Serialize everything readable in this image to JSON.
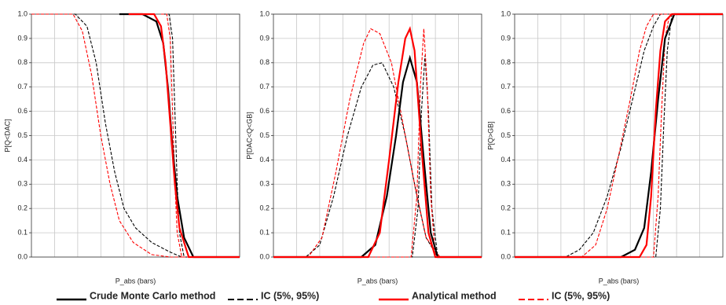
{
  "chart_data": [
    {
      "type": "line",
      "ylabel": "P[Q<DAC]",
      "xlabel": "P_abs (bars)",
      "xlim": [
        0,
        9
      ],
      "ylim": [
        0,
        1
      ],
      "yticks": [
        {
          "value": 0,
          "label": "0.0"
        },
        {
          "value": 0.1,
          "label": "0.1"
        },
        {
          "value": 0.2,
          "label": "0.2"
        },
        {
          "value": 0.3,
          "label": "0.3"
        },
        {
          "value": 0.4,
          "label": "0.4"
        },
        {
          "value": 0.5,
          "label": "0.5"
        },
        {
          "value": 0.6,
          "label": "0.6"
        },
        {
          "value": 0.7,
          "label": "0.7"
        },
        {
          "value": 0.8,
          "label": "0.8"
        },
        {
          "value": 0.9,
          "label": "0.9"
        },
        {
          "value": 1,
          "label": "1.0"
        }
      ],
      "grid": true,
      "series": [
        {
          "color": "#000000",
          "dash": true,
          "x": [
            0,
            1.9,
            2.4,
            2.8,
            3.2,
            3.6,
            4.0,
            4.5,
            5.2,
            6.0,
            6.5,
            9
          ],
          "values": [
            1,
            1,
            0.95,
            0.8,
            0.55,
            0.35,
            0.2,
            0.12,
            0.06,
            0.02,
            0,
            0
          ]
        },
        {
          "color": "#ff0000",
          "dash": true,
          "x": [
            0,
            1.8,
            2.2,
            2.6,
            3.0,
            3.4,
            3.8,
            4.4,
            5.2,
            6.0,
            9
          ],
          "values": [
            1,
            1,
            0.93,
            0.75,
            0.5,
            0.3,
            0.15,
            0.06,
            0.01,
            0,
            0
          ]
        },
        {
          "color": "#000000",
          "dash": true,
          "x": [
            5.7,
            5.95,
            6.1,
            6.2,
            6.3,
            6.4,
            6.6,
            9
          ],
          "values": [
            1,
            1,
            0.9,
            0.6,
            0.3,
            0.1,
            0,
            0
          ]
        },
        {
          "color": "#ff0000",
          "dash": true,
          "x": [
            5.6,
            5.85,
            6.0,
            6.1,
            6.2,
            6.3,
            6.5,
            9
          ],
          "values": [
            1,
            1,
            0.9,
            0.6,
            0.3,
            0.1,
            0,
            0
          ]
        },
        {
          "color": "#000000",
          "dash": false,
          "x": [
            3.8,
            4.8,
            5.4,
            5.7,
            5.9,
            6.1,
            6.3,
            6.6,
            7.0,
            9
          ],
          "values": [
            1,
            1,
            0.97,
            0.88,
            0.7,
            0.45,
            0.25,
            0.08,
            0,
            0
          ]
        },
        {
          "color": "#ff0000",
          "dash": false,
          "x": [
            4.2,
            5.3,
            5.6,
            5.8,
            6.0,
            6.2,
            6.4,
            6.8,
            9
          ],
          "values": [
            1,
            1,
            0.95,
            0.8,
            0.55,
            0.3,
            0.12,
            0,
            0
          ]
        }
      ]
    },
    {
      "type": "line",
      "ylabel": "P[DAC<Q<GB]",
      "xlabel": "P_abs (bars)",
      "xlim": [
        0,
        9
      ],
      "ylim": [
        0,
        1
      ],
      "yticks": [
        {
          "value": 0,
          "label": "0.0"
        },
        {
          "value": 0.1,
          "label": "0.1"
        },
        {
          "value": 0.2,
          "label": "0.2"
        },
        {
          "value": 0.3,
          "label": "0.3"
        },
        {
          "value": 0.4,
          "label": "0.4"
        },
        {
          "value": 0.5,
          "label": "0.5"
        },
        {
          "value": 0.6,
          "label": "0.6"
        },
        {
          "value": 0.7,
          "label": "0.7"
        },
        {
          "value": 0.8,
          "label": "0.8"
        },
        {
          "value": 0.9,
          "label": "0.9"
        },
        {
          "value": 1,
          "label": "1.0"
        }
      ],
      "grid": true,
      "series": [
        {
          "color": "#000000",
          "dash": true,
          "x": [
            0,
            1.4,
            2.0,
            2.6,
            3.2,
            3.8,
            4.3,
            4.7,
            5.2,
            5.7,
            6.2,
            6.6,
            7.1,
            9
          ],
          "values": [
            0,
            0,
            0.05,
            0.25,
            0.5,
            0.7,
            0.79,
            0.8,
            0.7,
            0.5,
            0.25,
            0.08,
            0,
            0
          ]
        },
        {
          "color": "#ff0000",
          "dash": true,
          "x": [
            0,
            1.5,
            2.1,
            2.7,
            3.3,
            3.9,
            4.2,
            4.6,
            5.1,
            5.6,
            6.1,
            6.6,
            7.2,
            9
          ],
          "values": [
            0,
            0,
            0.08,
            0.35,
            0.65,
            0.88,
            0.94,
            0.92,
            0.8,
            0.55,
            0.3,
            0.08,
            0,
            0
          ]
        },
        {
          "color": "#000000",
          "dash": true,
          "x": [
            0,
            6.0,
            6.25,
            6.4,
            6.55,
            6.7,
            6.85,
            7.1,
            9
          ],
          "values": [
            0,
            0,
            0.2,
            0.6,
            0.83,
            0.6,
            0.2,
            0,
            0
          ]
        },
        {
          "color": "#ff0000",
          "dash": true,
          "x": [
            0,
            5.95,
            6.2,
            6.35,
            6.5,
            6.65,
            6.8,
            7.0,
            9
          ],
          "values": [
            0,
            0,
            0.25,
            0.7,
            0.94,
            0.7,
            0.25,
            0,
            0
          ]
        },
        {
          "color": "#000000",
          "dash": false,
          "x": [
            0,
            3.8,
            4.4,
            4.9,
            5.3,
            5.6,
            5.9,
            6.2,
            6.5,
            6.8,
            7.1,
            9
          ],
          "values": [
            0,
            0,
            0.05,
            0.25,
            0.5,
            0.72,
            0.82,
            0.72,
            0.4,
            0.1,
            0,
            0
          ]
        },
        {
          "color": "#ff0000",
          "dash": false,
          "x": [
            0,
            4.1,
            4.6,
            5.0,
            5.4,
            5.7,
            5.9,
            6.1,
            6.4,
            6.7,
            7.0,
            9
          ],
          "values": [
            0,
            0,
            0.1,
            0.4,
            0.72,
            0.9,
            0.94,
            0.85,
            0.45,
            0.1,
            0,
            0
          ]
        }
      ]
    },
    {
      "type": "line",
      "ylabel": "P[Q>GB]",
      "xlabel": "P_abs (bars)",
      "xlim": [
        0,
        9
      ],
      "ylim": [
        0,
        1
      ],
      "yticks": [
        {
          "value": 0,
          "label": "0.0"
        },
        {
          "value": 0.1,
          "label": "0.1"
        },
        {
          "value": 0.2,
          "label": "0.2"
        },
        {
          "value": 0.3,
          "label": "0.3"
        },
        {
          "value": 0.4,
          "label": "0.4"
        },
        {
          "value": 0.5,
          "label": "0.5"
        },
        {
          "value": 0.6,
          "label": "0.6"
        },
        {
          "value": 0.7,
          "label": "0.7"
        },
        {
          "value": 0.8,
          "label": "0.8"
        },
        {
          "value": 0.9,
          "label": "0.9"
        },
        {
          "value": 1,
          "label": "1.0"
        }
      ],
      "grid": true,
      "series": [
        {
          "color": "#000000",
          "dash": true,
          "x": [
            0,
            2.2,
            2.8,
            3.4,
            4.0,
            4.6,
            5.1,
            5.6,
            6.0,
            6.3,
            9
          ],
          "values": [
            0,
            0,
            0.03,
            0.1,
            0.25,
            0.45,
            0.65,
            0.85,
            0.95,
            1,
            1
          ]
        },
        {
          "color": "#ff0000",
          "dash": true,
          "x": [
            0,
            2.9,
            3.5,
            4.0,
            4.5,
            5.0,
            5.4,
            5.7,
            6.0,
            9
          ],
          "values": [
            0,
            0,
            0.05,
            0.2,
            0.42,
            0.65,
            0.85,
            0.95,
            1,
            1
          ]
        },
        {
          "color": "#000000",
          "dash": true,
          "x": [
            0,
            6.1,
            6.3,
            6.45,
            6.6,
            6.8,
            9
          ],
          "values": [
            0,
            0,
            0.2,
            0.55,
            0.85,
            1,
            1
          ]
        },
        {
          "color": "#ff0000",
          "dash": true,
          "x": [
            0,
            6.0,
            6.2,
            6.35,
            6.5,
            6.7,
            9
          ],
          "values": [
            0,
            0,
            0.25,
            0.6,
            0.9,
            1,
            1
          ]
        },
        {
          "color": "#000000",
          "dash": false,
          "x": [
            0,
            4.6,
            5.2,
            5.6,
            5.9,
            6.2,
            6.5,
            6.9,
            9
          ],
          "values": [
            0,
            0,
            0.03,
            0.12,
            0.35,
            0.65,
            0.9,
            1,
            1
          ]
        },
        {
          "color": "#ff0000",
          "dash": false,
          "x": [
            0,
            5.4,
            5.7,
            5.9,
            6.1,
            6.3,
            6.5,
            6.8,
            9
          ],
          "values": [
            0,
            0,
            0.05,
            0.25,
            0.6,
            0.85,
            0.97,
            1,
            1
          ]
        }
      ]
    }
  ],
  "legend": [
    {
      "label": "Crude Monte Carlo method",
      "color": "#000000",
      "dash": false
    },
    {
      "label": "IC (5%, 95%)",
      "color": "#000000",
      "dash": true
    },
    {
      "label": "Analytical method",
      "color": "#ff0000",
      "dash": false
    },
    {
      "label": "IC (5%, 95%)",
      "color": "#ff0000",
      "dash": true
    }
  ]
}
